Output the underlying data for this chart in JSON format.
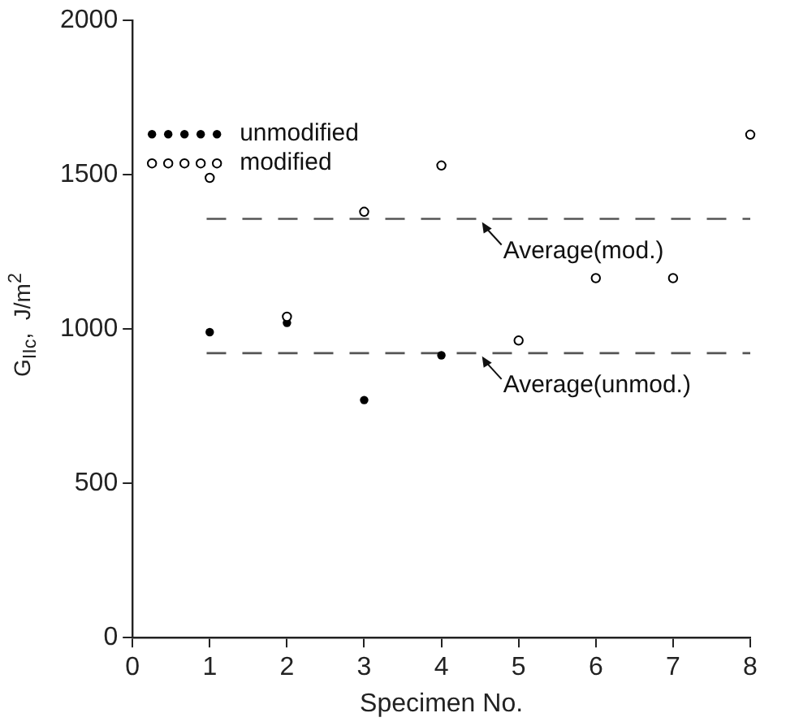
{
  "chart_data": {
    "type": "scatter",
    "xlabel": "Specimen No.",
    "ylabel": "G$_{IIc}$,  J/m$^{2}$",
    "x": [
      1,
      2,
      3,
      4,
      5,
      6,
      7,
      8
    ],
    "series": [
      {
        "name": "unmodified",
        "color": "#000000",
        "marker": "circle",
        "values": [
          990,
          1020,
          770,
          915,
          null,
          null,
          null,
          null
        ]
      },
      {
        "name": "modified",
        "color": "#000000",
        "marker": "circle_open",
        "values": [
          1490,
          1040,
          1380,
          1530,
          963,
          1165,
          1165,
          1630
        ]
      }
    ],
    "xlim": [
      0,
      8
    ],
    "xticks": [
      0,
      1,
      2,
      3,
      4,
      5,
      6,
      7,
      8
    ],
    "ylim": [
      0,
      2000
    ],
    "yticks": [
      0,
      500,
      1000,
      1500,
      2000
    ],
    "ref_lines": [
      {
        "axis": "y",
        "value": 1357,
        "label": "Average(mod.)",
        "line_style": "dashed",
        "color": "#555555"
      },
      {
        "axis": "y",
        "value": 922,
        "label": "Average(unmod.)",
        "line_style": "dashed",
        "color": "#555555"
      }
    ],
    "grid": false,
    "legend": "top left"
  }
}
